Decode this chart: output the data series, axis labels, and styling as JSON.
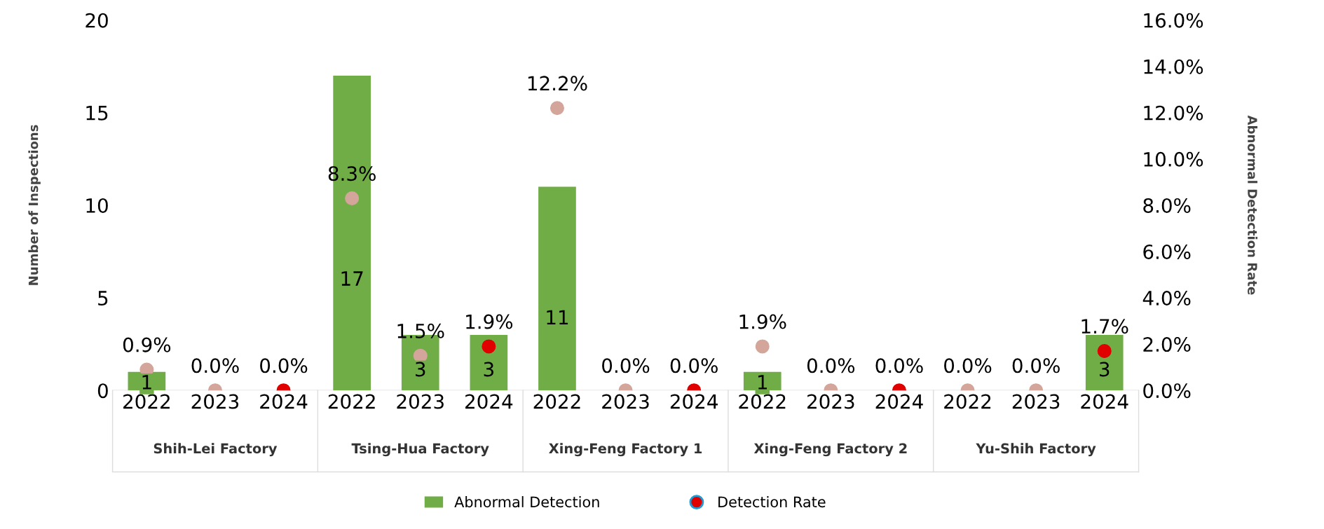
{
  "chart_data": {
    "type": "bar",
    "ylabel": "Number of Inspections",
    "y2label": "Abnormal Detection Rate",
    "categories": [
      "2022",
      "2023",
      "2024",
      "2022",
      "2023",
      "2024",
      "2022",
      "2023",
      "2024",
      "2022",
      "2023",
      "2024",
      "2022",
      "2023",
      "2024"
    ],
    "annotations": [
      "Shih-Lei Factory",
      "Tsing-Hua Factory",
      "Xing-Feng Factory 1",
      "Xing-Feng Factory 2",
      "Yu-Shih Factory"
    ],
    "series": [
      {
        "name": "Abnormal Detection",
        "color": "#70ad47",
        "values": [
          1,
          0,
          0,
          17,
          3,
          3,
          11,
          0,
          0,
          1,
          0,
          0,
          0,
          0,
          3
        ],
        "value_labels": [
          "1",
          null,
          null,
          "17",
          "3",
          "3",
          "11",
          null,
          null,
          "1",
          null,
          null,
          null,
          null,
          "3"
        ]
      },
      {
        "name": "Detection Rate",
        "type": "scatter",
        "axis": "y2",
        "color": "#e00000",
        "colors": [
          "#d4a59a",
          "#d4a59a",
          "#e00000",
          "#d4a59a",
          "#d4a59a",
          "#e00000",
          "#d4a59a",
          "#d4a59a",
          "#e00000",
          "#d4a59a",
          "#d4a59a",
          "#e00000",
          "#d4a59a",
          "#d4a59a",
          "#e00000"
        ],
        "values": [
          0.9,
          0.0,
          0.0,
          8.3,
          1.5,
          1.9,
          12.2,
          0.0,
          0.0,
          1.9,
          0.0,
          0.0,
          0.0,
          0.0,
          1.7
        ],
        "value_labels": [
          "0.9%",
          "0.0%",
          "0.0%",
          "8.3%",
          "1.5%",
          "1.9%",
          "12.2%",
          "0.0%",
          "0.0%",
          "1.9%",
          "0.0%",
          "0.0%",
          "0.0%",
          "0.0%",
          "1.7%"
        ]
      }
    ],
    "ylim": [
      0,
      20
    ],
    "yticks": [
      0,
      5,
      10,
      15,
      20
    ],
    "y2lim": [
      0,
      16
    ],
    "y2ticks": [
      {
        "value": 0,
        "label": "0.0%"
      },
      {
        "value": 2,
        "label": "2.0%"
      },
      {
        "value": 4,
        "label": "4.0%"
      },
      {
        "value": 6,
        "label": "6.0%"
      },
      {
        "value": 8,
        "label": "8.0%"
      },
      {
        "value": 10,
        "label": "10.0%"
      },
      {
        "value": 12,
        "label": "12.0%"
      },
      {
        "value": 14,
        "label": "14.0%"
      },
      {
        "value": 16,
        "label": "16.0%"
      }
    ],
    "grid": false,
    "legend": "bottom",
    "marker": "circle"
  }
}
